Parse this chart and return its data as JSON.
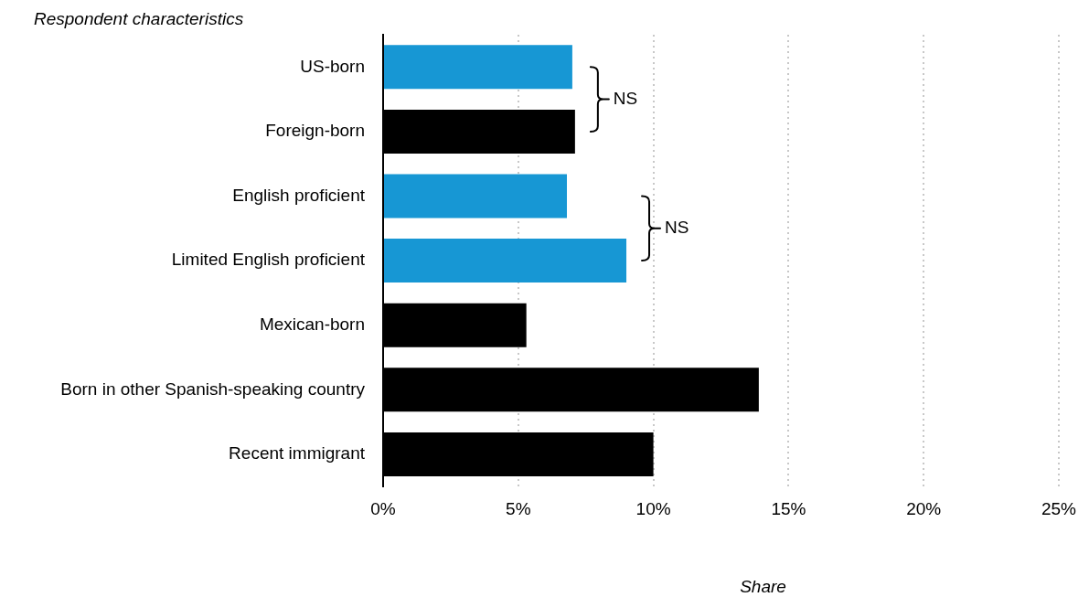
{
  "chart_data": {
    "type": "bar",
    "orientation": "horizontal",
    "categories": [
      "US-born",
      "Foreign-born",
      "English proficient",
      "Limited English proficient",
      "Mexican-born",
      "Born in other Spanish-speaking country",
      "Recent immigrant"
    ],
    "values": [
      7.0,
      7.1,
      6.8,
      9.0,
      5.3,
      13.9,
      10.0
    ],
    "colors": [
      "#1797d4",
      "#000000",
      "#1797d4",
      "#1797d4",
      "#000000",
      "#000000",
      "#000000"
    ],
    "xlim": [
      0,
      25
    ],
    "xticks": [
      {
        "value": 0,
        "label": "0%"
      },
      {
        "value": 5,
        "label": "5%"
      },
      {
        "value": 10,
        "label": "10%"
      },
      {
        "value": 15,
        "label": "15%"
      },
      {
        "value": 20,
        "label": "20%"
      },
      {
        "value": 25,
        "label": "25%"
      }
    ],
    "xlabel": "Share",
    "ylabel": "Respondent characteristics",
    "annotations": [
      "NS",
      "NS"
    ],
    "grid": "x",
    "legend": false
  }
}
